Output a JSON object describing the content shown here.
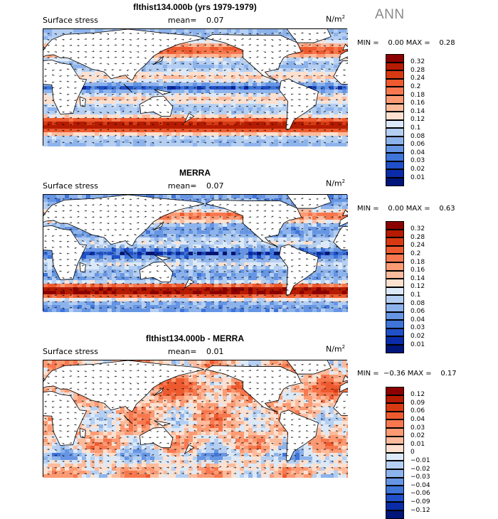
{
  "season": "ANN",
  "panels": [
    {
      "title": "flthist134.000b (yrs 1979-1979)",
      "field": "Surface stress",
      "mean_label": "mean=",
      "mean_value": "0.07",
      "units": "N/m",
      "units_sup": "2",
      "minmax": "MIN =    0.00 MAX =    0.28",
      "colorbar": {
        "labels": [
          "0.32",
          "0.28",
          "0.24",
          "0.2",
          "0.18",
          "0.16",
          "0.14",
          "0.12",
          "0.1",
          "0.08",
          "0.06",
          "0.04",
          "0.03",
          "0.02",
          "0.01"
        ],
        "colors": [
          "#8b0000",
          "#b51b00",
          "#d73a12",
          "#ee5a2f",
          "#f7784f",
          "#fb9a73",
          "#fcbb9c",
          "#fde0cf",
          "#dce9f8",
          "#b4cff2",
          "#8db3ec",
          "#6695e4",
          "#3f74d9",
          "#2050c8",
          "#0a2ca8",
          "#00157a"
        ]
      },
      "map_palette": [
        "#00157a",
        "#0a2ca8",
        "#2050c8",
        "#3f74d9",
        "#6695e4",
        "#8db3ec",
        "#b4cff2",
        "#dce9f8",
        "#fde0cf",
        "#fcbb9c",
        "#fb9a73",
        "#f7784f",
        "#ee5a2f",
        "#d73a12",
        "#b51b00",
        "#8b0000"
      ]
    },
    {
      "title": "MERRA",
      "field": "Surface stress",
      "mean_label": "mean=",
      "mean_value": "0.07",
      "units": "N/m",
      "units_sup": "2",
      "minmax": "MIN =    0.00 MAX =    0.63",
      "colorbar": {
        "labels": [
          "0.32",
          "0.28",
          "0.24",
          "0.2",
          "0.18",
          "0.16",
          "0.14",
          "0.12",
          "0.1",
          "0.08",
          "0.06",
          "0.04",
          "0.03",
          "0.02",
          "0.01"
        ],
        "colors": [
          "#8b0000",
          "#b51b00",
          "#d73a12",
          "#ee5a2f",
          "#f7784f",
          "#fb9a73",
          "#fcbb9c",
          "#fde0cf",
          "#dce9f8",
          "#b4cff2",
          "#8db3ec",
          "#6695e4",
          "#3f74d9",
          "#2050c8",
          "#0a2ca8",
          "#00157a"
        ]
      },
      "map_palette": [
        "#00157a",
        "#0a2ca8",
        "#2050c8",
        "#3f74d9",
        "#6695e4",
        "#8db3ec",
        "#b4cff2",
        "#dce9f8",
        "#fde0cf",
        "#fcbb9c",
        "#fb9a73",
        "#f7784f",
        "#ee5a2f",
        "#d73a12",
        "#b51b00",
        "#8b0000"
      ]
    },
    {
      "title": "flthist134.000b - MERRA",
      "field": "Surface stress",
      "mean_label": "mean=",
      "mean_value": "0.01",
      "units": "N/m",
      "units_sup": "2",
      "minmax": "MIN =  −0.36 MAX =    0.17",
      "colorbar": {
        "labels": [
          "0.12",
          "0.09",
          "0.06",
          "0.04",
          "0.03",
          "0.02",
          "0.01",
          "0",
          "−0.01",
          "−0.02",
          "−0.03",
          "−0.04",
          "−0.06",
          "−0.09",
          "−0.12"
        ],
        "colors": [
          "#8b0000",
          "#b51b00",
          "#d73a12",
          "#ee5a2f",
          "#f7784f",
          "#fb9a73",
          "#fcbb9c",
          "#fde0cf",
          "#dce9f8",
          "#b4cff2",
          "#8db3ec",
          "#6695e4",
          "#3f74d9",
          "#2050c8",
          "#0a2ca8",
          "#00157a"
        ]
      },
      "map_palette": [
        "#00157a",
        "#0a2ca8",
        "#2050c8",
        "#3f74d9",
        "#6695e4",
        "#8db3ec",
        "#b4cff2",
        "#dce9f8",
        "#fde0cf",
        "#fcbb9c",
        "#fb9a73",
        "#f7784f",
        "#ee5a2f",
        "#d73a12",
        "#b51b00",
        "#8b0000"
      ]
    }
  ]
}
